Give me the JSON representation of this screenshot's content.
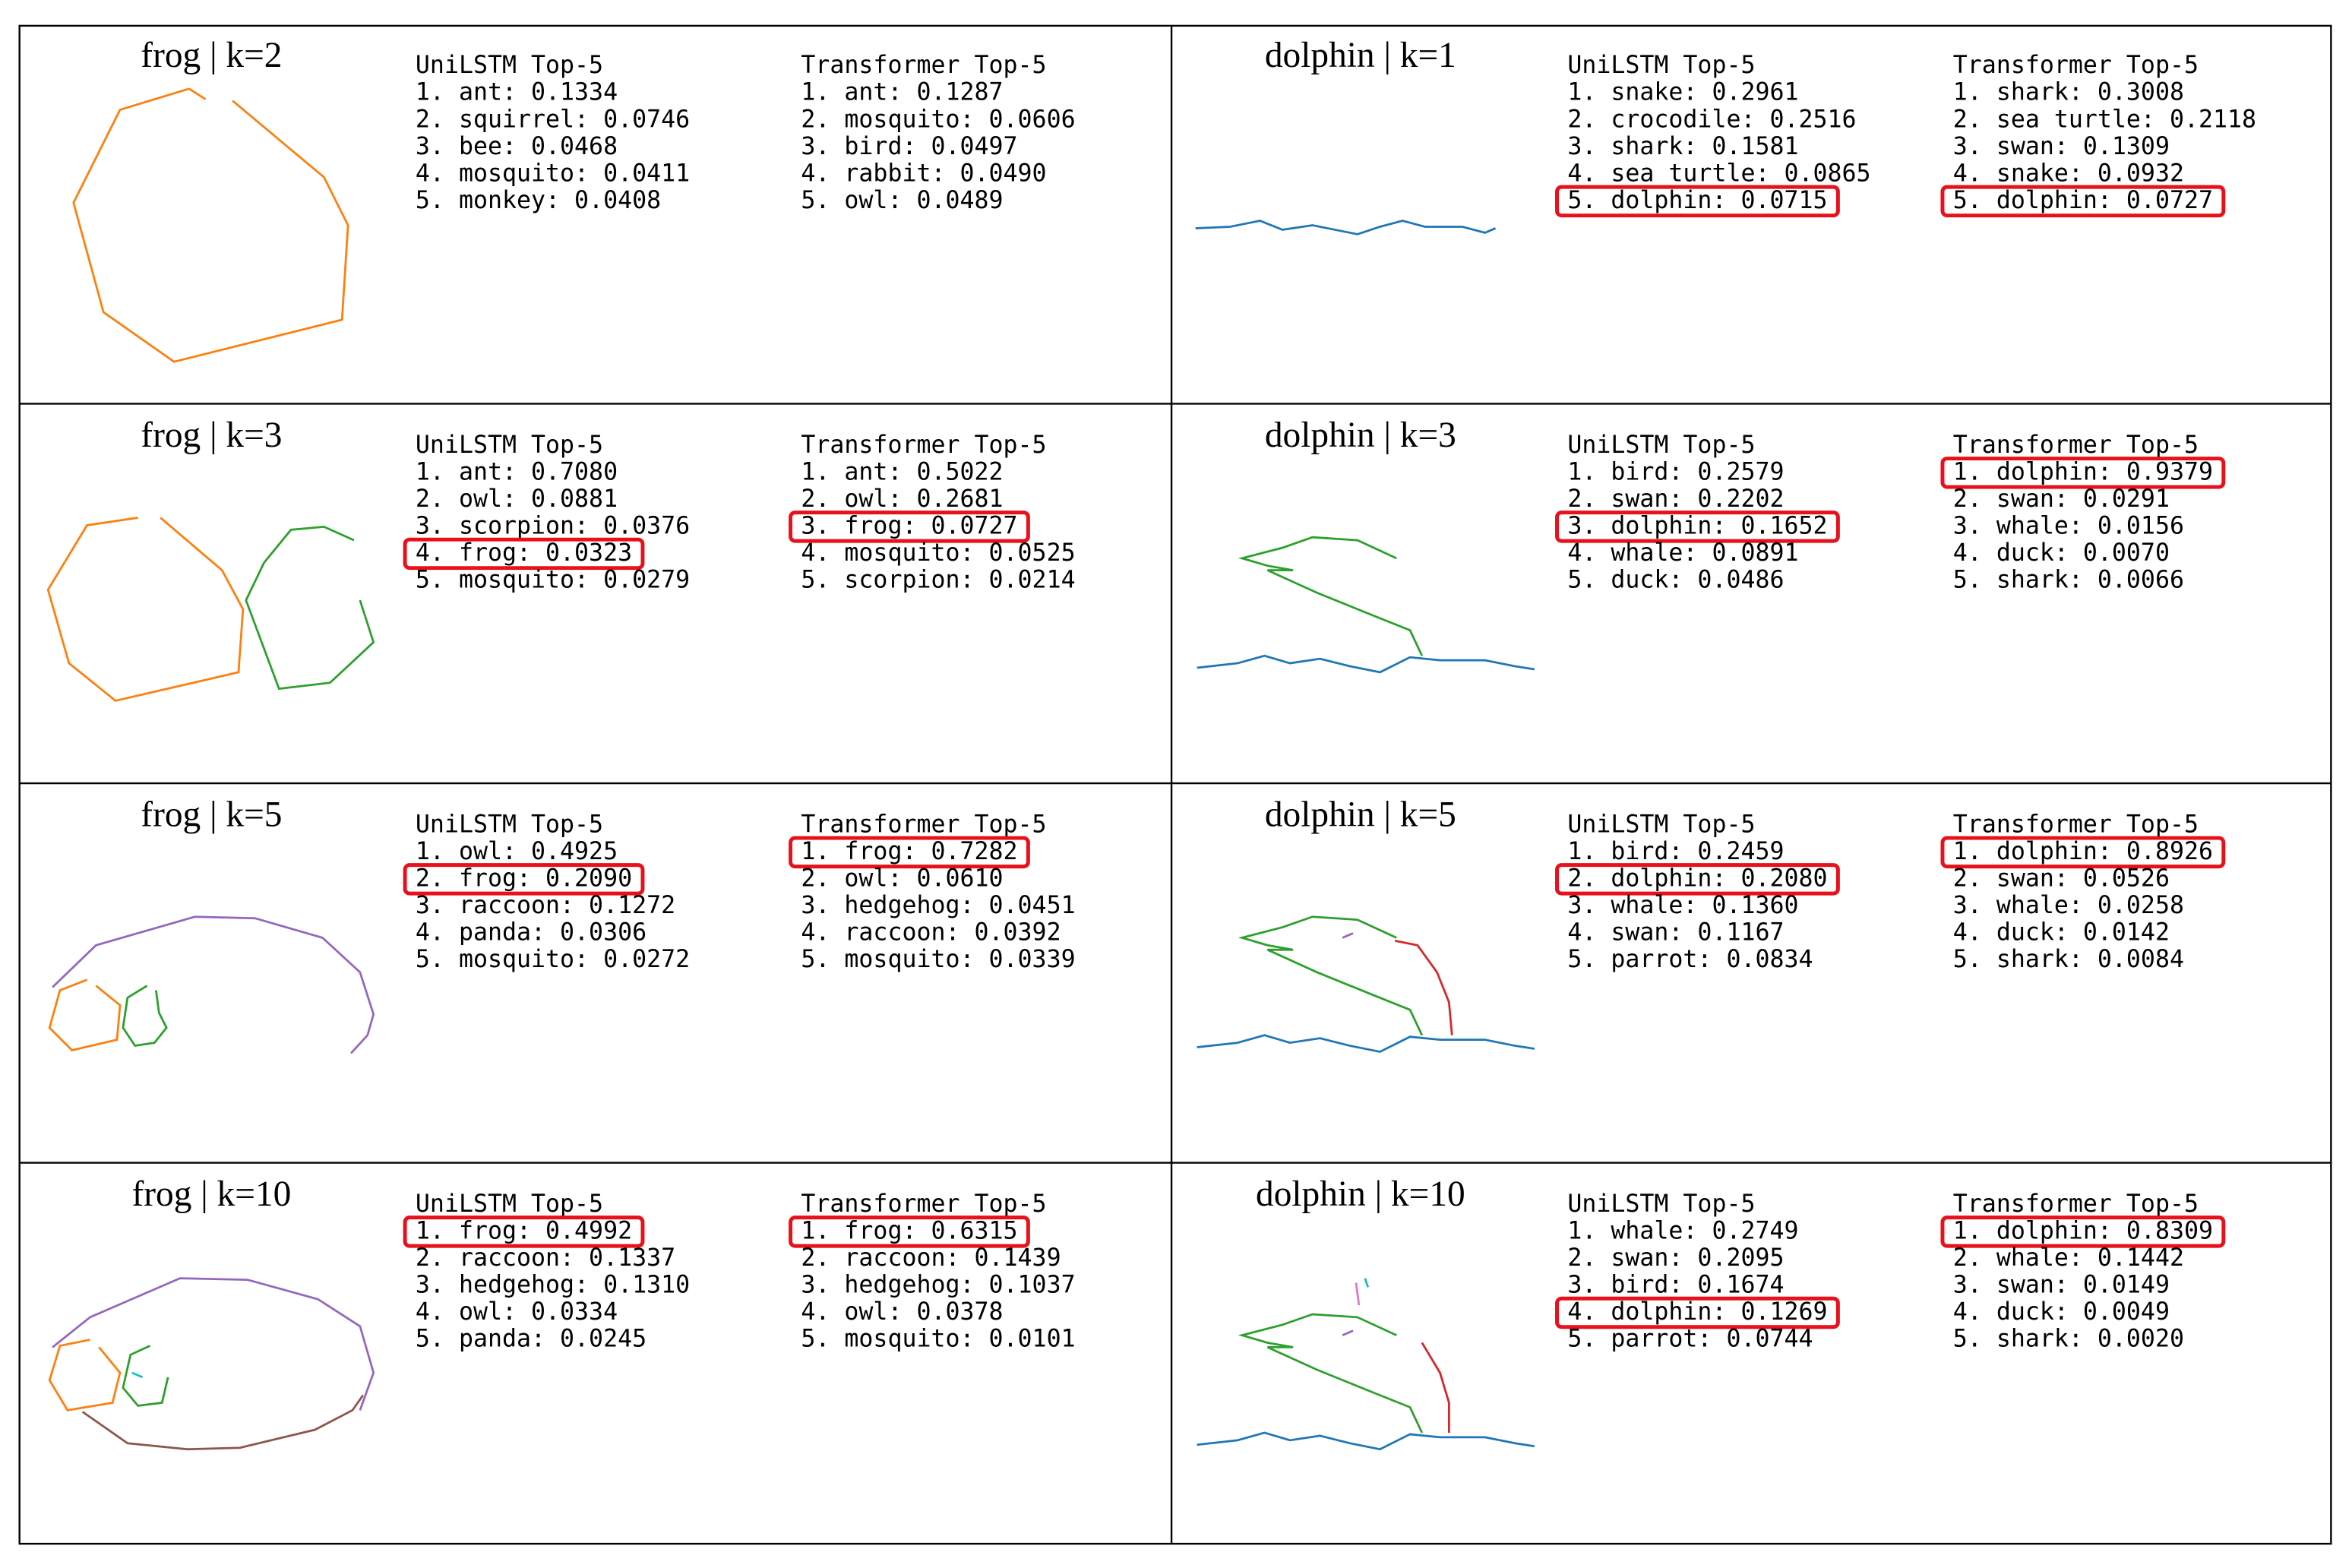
{
  "panels": [
    {
      "title": "frog | k=2",
      "columns": [
        {
          "header": "UniLSTM Top-5",
          "items": [
            "1. ant: 0.1334",
            "2. squirrel: 0.0746",
            "3. bee: 0.0468",
            "4. mosquito: 0.0411",
            "5. monkey: 0.0408"
          ]
        },
        {
          "header": "Transformer Top-5",
          "items": [
            "1. ant: 0.1287",
            "2. mosquito: 0.0606",
            "3. bird: 0.0497",
            "4. rabbit: 0.0490",
            "5. owl: 0.0489"
          ]
        }
      ]
    },
    {
      "title": "dolphin | k=1",
      "columns": [
        {
          "header": "UniLSTM Top-5",
          "items": [
            "1. snake: 0.2961",
            "2. crocodile: 0.2516",
            "3. shark: 0.1581",
            "4. sea turtle: 0.0865",
            "5. dolphin: 0.0715"
          ],
          "highlight": 4
        },
        {
          "header": "Transformer Top-5",
          "items": [
            "1. shark: 0.3008",
            "2. sea turtle: 0.2118",
            "3. swan: 0.1309",
            "4. snake: 0.0932",
            "5. dolphin: 0.0727"
          ],
          "highlight": 4
        }
      ]
    },
    {
      "title": "frog | k=3",
      "columns": [
        {
          "header": "UniLSTM Top-5",
          "items": [
            "1. ant: 0.7080",
            "2. owl: 0.0881",
            "3. scorpion: 0.0376",
            "4. frog: 0.0323",
            "5. mosquito: 0.0279"
          ],
          "highlight": 3
        },
        {
          "header": "Transformer Top-5",
          "items": [
            "1. ant: 0.5022",
            "2. owl: 0.2681",
            "3. frog: 0.0727",
            "4. mosquito: 0.0525",
            "5. scorpion: 0.0214"
          ],
          "highlight": 2
        }
      ]
    },
    {
      "title": "dolphin | k=3",
      "columns": [
        {
          "header": "UniLSTM Top-5",
          "items": [
            "1. bird: 0.2579",
            "2. swan: 0.2202",
            "3. dolphin: 0.1652",
            "4. whale: 0.0891",
            "5. duck: 0.0486"
          ],
          "highlight": 2
        },
        {
          "header": "Transformer Top-5",
          "items": [
            "1. dolphin: 0.9379",
            "2. swan: 0.0291",
            "3. whale: 0.0156",
            "4. duck: 0.0070",
            "5. shark: 0.0066"
          ],
          "highlight": 0
        }
      ]
    },
    {
      "title": "frog | k=5",
      "columns": [
        {
          "header": "UniLSTM Top-5",
          "items": [
            "1. owl: 0.4925",
            "2. frog: 0.2090",
            "3. raccoon: 0.1272",
            "4. panda: 0.0306",
            "5. mosquito: 0.0272"
          ],
          "highlight": 1
        },
        {
          "header": "Transformer Top-5",
          "items": [
            "1. frog: 0.7282",
            "2. owl: 0.0610",
            "3. hedgehog: 0.0451",
            "4. raccoon: 0.0392",
            "5. mosquito: 0.0339"
          ],
          "highlight": 0
        }
      ]
    },
    {
      "title": "dolphin | k=5",
      "columns": [
        {
          "header": "UniLSTM Top-5",
          "items": [
            "1. bird: 0.2459",
            "2. dolphin: 0.2080",
            "3. whale: 0.1360",
            "4. swan: 0.1167",
            "5. parrot: 0.0834"
          ],
          "highlight": 1
        },
        {
          "header": "Transformer Top-5",
          "items": [
            "1. dolphin: 0.8926",
            "2. swan: 0.0526",
            "3. whale: 0.0258",
            "4. duck: 0.0142",
            "5. shark: 0.0084"
          ],
          "highlight": 0
        }
      ]
    },
    {
      "title": "frog | k=10",
      "columns": [
        {
          "header": "UniLSTM Top-5",
          "items": [
            "1. frog: 0.4992",
            "2. raccoon: 0.1337",
            "3. hedgehog: 0.1310",
            "4. owl: 0.0334",
            "5. panda: 0.0245"
          ],
          "highlight": 0
        },
        {
          "header": "Transformer Top-5",
          "items": [
            "1. frog: 0.6315",
            "2. raccoon: 0.1439",
            "3. hedgehog: 0.1037",
            "4. owl: 0.0378",
            "5. mosquito: 0.0101"
          ],
          "highlight": 0
        }
      ]
    },
    {
      "title": "dolphin | k=10",
      "columns": [
        {
          "header": "UniLSTM Top-5",
          "items": [
            "1. whale: 0.2749",
            "2. swan: 0.2095",
            "3. bird: 0.1674",
            "4. dolphin: 0.1269",
            "5. parrot: 0.0744"
          ],
          "highlight": 3
        },
        {
          "header": "Transformer Top-5",
          "items": [
            "1. dolphin: 0.8309",
            "2. whale: 0.1442",
            "3. swan: 0.0149",
            "4. duck: 0.0049",
            "5. shark: 0.0020"
          ],
          "highlight": 0
        }
      ]
    }
  ]
}
